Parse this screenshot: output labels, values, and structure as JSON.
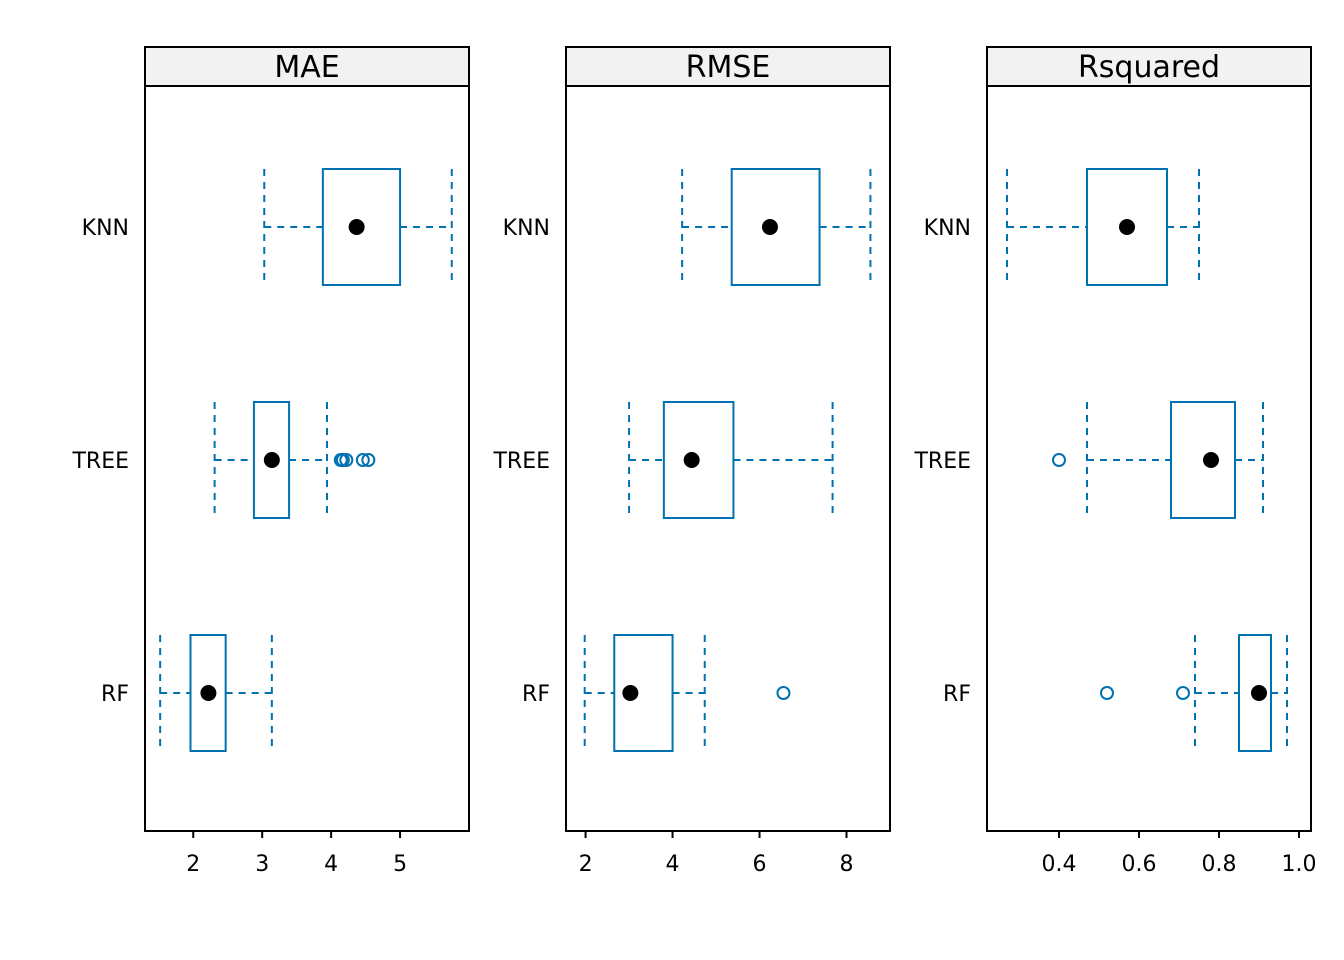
{
  "colors": {
    "box": "#0072B2",
    "median": "#000000",
    "frame": "#000000",
    "strip_bg": "#F2F2F2"
  },
  "chart_data": [
    {
      "type": "box",
      "orientation": "horizontal",
      "panel": "MAE",
      "title": "MAE",
      "categories": [
        "KNN",
        "TREE",
        "RF"
      ],
      "xlim": [
        1.3,
        6.0
      ],
      "xticks": [
        2,
        3,
        4,
        5
      ],
      "boxes": [
        {
          "category": "KNN",
          "whisker_low": 3.03,
          "q1": 3.88,
          "median": 4.37,
          "q3": 5.0,
          "whisker_high": 5.75,
          "outliers": []
        },
        {
          "category": "TREE",
          "whisker_low": 2.31,
          "q1": 2.88,
          "median": 3.14,
          "q3": 3.39,
          "whisker_high": 3.94,
          "outliers": [
            4.14,
            4.17,
            4.22,
            4.46,
            4.54
          ]
        },
        {
          "category": "RF",
          "whisker_low": 1.52,
          "q1": 1.96,
          "median": 2.22,
          "q3": 2.47,
          "whisker_high": 3.14,
          "outliers": []
        }
      ]
    },
    {
      "type": "box",
      "orientation": "horizontal",
      "panel": "RMSE",
      "title": "RMSE",
      "categories": [
        "KNN",
        "TREE",
        "RF"
      ],
      "xlim": [
        1.55,
        9.0
      ],
      "xticks": [
        2,
        4,
        6,
        8
      ],
      "boxes": [
        {
          "category": "KNN",
          "whisker_low": 4.22,
          "q1": 5.36,
          "median": 6.24,
          "q3": 7.38,
          "whisker_high": 8.55,
          "outliers": []
        },
        {
          "category": "TREE",
          "whisker_low": 3.0,
          "q1": 3.8,
          "median": 4.44,
          "q3": 5.4,
          "whisker_high": 7.68,
          "outliers": []
        },
        {
          "category": "RF",
          "whisker_low": 1.98,
          "q1": 2.66,
          "median": 3.03,
          "q3": 4.0,
          "whisker_high": 4.74,
          "outliers": [
            6.55
          ]
        }
      ]
    },
    {
      "type": "box",
      "orientation": "horizontal",
      "panel": "Rsquared",
      "title": "Rsquared",
      "categories": [
        "KNN",
        "TREE",
        "RF"
      ],
      "xlim": [
        0.22,
        1.03
      ],
      "xticks": [
        0.4,
        0.6,
        0.8,
        1.0
      ],
      "xticklabels": [
        "0.4",
        "0.6",
        "0.8",
        "1.0"
      ],
      "boxes": [
        {
          "category": "KNN",
          "whisker_low": 0.27,
          "q1": 0.47,
          "median": 0.57,
          "q3": 0.67,
          "whisker_high": 0.75,
          "outliers": []
        },
        {
          "category": "TREE",
          "whisker_low": 0.47,
          "q1": 0.68,
          "median": 0.78,
          "q3": 0.84,
          "whisker_high": 0.91,
          "outliers": [
            0.4
          ]
        },
        {
          "category": "RF",
          "whisker_low": 0.74,
          "q1": 0.85,
          "median": 0.9,
          "q3": 0.93,
          "whisker_high": 0.97,
          "outliers": [
            0.52,
            0.71
          ]
        }
      ]
    }
  ]
}
